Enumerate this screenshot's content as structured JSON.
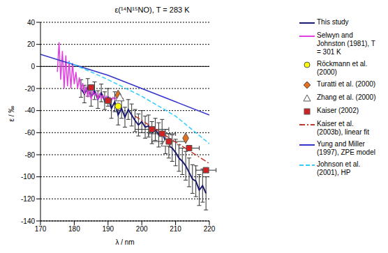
{
  "chart_data": {
    "type": "line",
    "title": "ε(¹⁴N¹⁵NO), T = 283 K",
    "x_label": "λ / nm",
    "y_label": "ε / ‰",
    "xlim": [
      170,
      220
    ],
    "xticks": [
      170,
      180,
      190,
      200,
      210,
      220
    ],
    "ylim": [
      -140,
      40
    ],
    "yticks": [
      -140,
      -120,
      -100,
      -80,
      -60,
      -40,
      -20,
      0,
      20,
      40
    ],
    "grid": true,
    "legend": "right",
    "series": [
      {
        "name": "This study",
        "type": "line",
        "color": "#1a1a70",
        "line_style": "solid",
        "marker": "none",
        "x": [
          182,
          183,
          184,
          185,
          186,
          187,
          188,
          189,
          190,
          191,
          192,
          193,
          194,
          195,
          196,
          197,
          198,
          199,
          200,
          201,
          202,
          203,
          204,
          205,
          206,
          207,
          208,
          209,
          210,
          211,
          212,
          213,
          214,
          215,
          216,
          217,
          218,
          219
        ],
        "values": [
          -20,
          -25,
          -19,
          -28,
          -22,
          -30,
          -24,
          -31,
          -28,
          -38,
          -32,
          -44,
          -38,
          -46,
          -39,
          -44,
          -49,
          -53,
          -50,
          -55,
          -54,
          -60,
          -57,
          -62,
          -59,
          -68,
          -72,
          -74,
          -78,
          -83,
          -86,
          -90,
          -96,
          -102,
          -104,
          -112,
          -108,
          -115
        ],
        "errors": [
          8,
          8,
          8,
          8,
          8,
          8,
          8,
          8,
          8,
          9,
          9,
          9,
          9,
          9,
          9,
          10,
          10,
          10,
          10,
          10,
          10,
          10,
          10,
          11,
          11,
          11,
          11,
          12,
          12,
          12,
          12,
          13,
          13,
          13,
          14,
          14,
          15,
          15
        ]
      },
      {
        "name": "Selwyn and Johnston (1981), T = 301 K",
        "type": "line",
        "color": "#e040e0",
        "line_style": "solid",
        "marker": "none",
        "x": [
          175,
          175.5,
          176,
          176.5,
          177,
          177.5,
          178,
          178.5,
          179,
          179.5,
          180,
          180.5,
          181,
          181.5,
          182,
          182.5,
          183,
          183.5,
          184,
          184.5,
          185,
          185.5,
          186,
          186.5,
          187,
          187.5,
          188,
          188.5,
          189,
          189.5,
          190,
          190.5,
          191,
          191.5,
          192,
          192.5,
          193,
          193.5,
          194
        ],
        "values": [
          -5,
          22,
          -12,
          14,
          -20,
          10,
          -18,
          5,
          -20,
          3,
          -16,
          -5,
          -20,
          -10,
          -22,
          -15,
          -25,
          -18,
          -28,
          -20,
          -30,
          -22,
          -26,
          -24,
          -30,
          -25,
          -29,
          -26,
          -30,
          -27,
          -30,
          -28,
          -31,
          -28,
          -30,
          -28,
          -31,
          -28,
          -29
        ]
      },
      {
        "name": "Röckmann et al. (2000)",
        "type": "scatter",
        "color": "#ffff00",
        "marker": "circle",
        "x": [
          193
        ],
        "values": [
          -36
        ]
      },
      {
        "name": "Turatti et al. (2000)",
        "type": "scatter",
        "color": "#e07020",
        "marker": "diamond",
        "x": [
          193,
          208,
          213
        ],
        "values": [
          -26,
          -69,
          -65
        ]
      },
      {
        "name": "Zhang et al. (2000)",
        "type": "scatter",
        "color": "#ffffff",
        "marker": "triangle",
        "x": [
          193.5,
          207
        ],
        "values": [
          -29,
          -70
        ]
      },
      {
        "name": "Kaiser (2002)",
        "type": "scatter",
        "color": "#d42020",
        "marker": "square",
        "x": [
          185,
          190,
          203,
          206,
          208,
          214,
          219
        ],
        "values": [
          -19,
          -31,
          -57,
          -61,
          -68,
          -74,
          -94
        ],
        "x_errors": [
          1,
          1,
          5,
          4,
          5,
          3,
          3
        ]
      },
      {
        "name": "Kaiser et al. (2003b), linear fit",
        "type": "line",
        "color": "#c0392b",
        "line_style": "dashdot",
        "marker": "none",
        "x": [
          198,
          220
        ],
        "values": [
          -45,
          -88
        ]
      },
      {
        "name": "Yung and Miller (1997), ZPE model",
        "type": "line",
        "color": "#3333cc",
        "line_style": "solid",
        "marker": "none",
        "x": [
          170,
          180,
          190,
          200,
          210,
          220
        ],
        "values": [
          11,
          1.5,
          -8,
          -20,
          -32,
          -44
        ]
      },
      {
        "name": "Johnson et al. (2001), HP",
        "type": "line",
        "color": "#33ccff",
        "line_style": "dashed",
        "marker": "none",
        "x": [
          178,
          185,
          190,
          200,
          210,
          220
        ],
        "values": [
          4,
          -5,
          -12,
          -27,
          -45,
          -70
        ]
      }
    ]
  }
}
